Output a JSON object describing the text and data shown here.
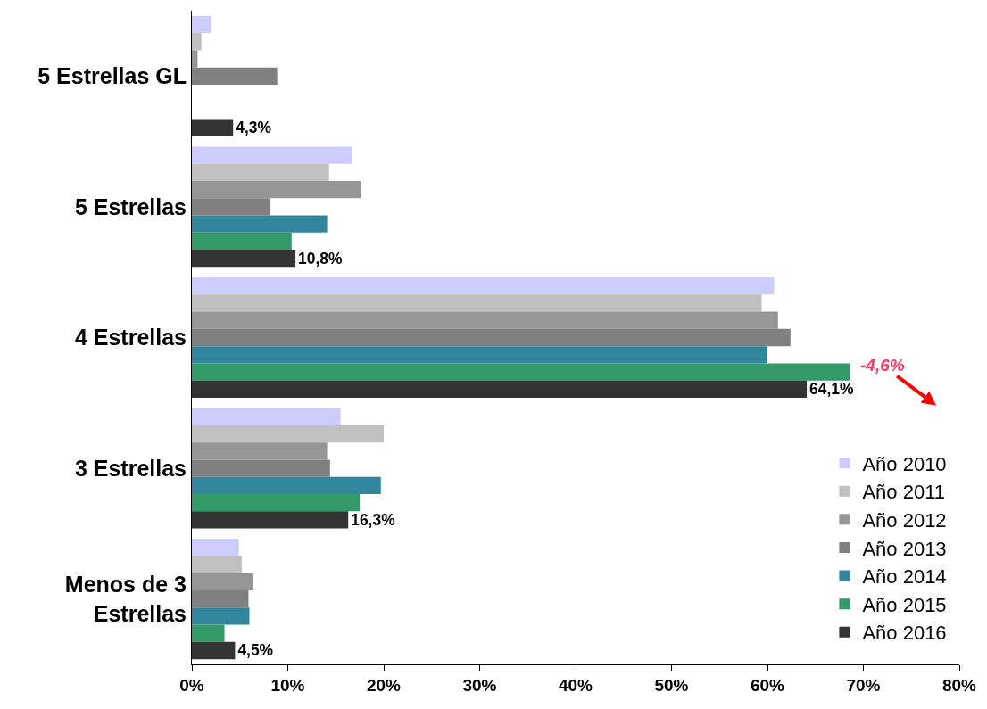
{
  "chart_data": {
    "type": "bar",
    "orientation": "horizontal",
    "categories": [
      "5 Estrellas GL",
      "5 Estrellas",
      "4 Estrellas",
      "3 Estrellas",
      "Menos de 3 Estrellas"
    ],
    "series": [
      {
        "name": "Año 2010",
        "color": "#ccccff",
        "values": [
          2.0,
          16.7,
          60.7,
          15.5,
          4.9
        ]
      },
      {
        "name": "Año 2011",
        "color": "#c0c0c0",
        "values": [
          1.0,
          14.3,
          59.4,
          20.0,
          5.2
        ]
      },
      {
        "name": "Año 2012",
        "color": "#969696",
        "values": [
          0.6,
          17.6,
          61.1,
          14.1,
          6.4
        ]
      },
      {
        "name": "Año 2013",
        "color": "#808080",
        "values": [
          8.9,
          8.2,
          62.4,
          14.4,
          5.9
        ]
      },
      {
        "name": "Año 2014",
        "color": "#31859c",
        "values": [
          null,
          14.1,
          60.0,
          19.7,
          6.0
        ]
      },
      {
        "name": "Año 2015",
        "color": "#339966",
        "values": [
          null,
          10.4,
          68.6,
          17.5,
          3.4
        ]
      },
      {
        "name": "Año 2016",
        "color": "#333333",
        "values": [
          4.3,
          10.8,
          64.1,
          16.3,
          4.5
        ],
        "value_labels": [
          "4,3%",
          "10,8%",
          "64,1%",
          "16,3%",
          "4,5%"
        ]
      }
    ],
    "xlim": [
      0,
      80
    ],
    "xticks": [
      {
        "value": 0,
        "label": "0%"
      },
      {
        "value": 10,
        "label": "10%"
      },
      {
        "value": 20,
        "label": "20%"
      },
      {
        "value": 30,
        "label": "30%"
      },
      {
        "value": 40,
        "label": "40%"
      },
      {
        "value": 50,
        "label": "50%"
      },
      {
        "value": 60,
        "label": "60%"
      },
      {
        "value": 70,
        "label": "70%"
      },
      {
        "value": 80,
        "label": "80%"
      }
    ],
    "legend": "bottom right",
    "grid": false,
    "annotations": [
      "-4,6%"
    ]
  }
}
